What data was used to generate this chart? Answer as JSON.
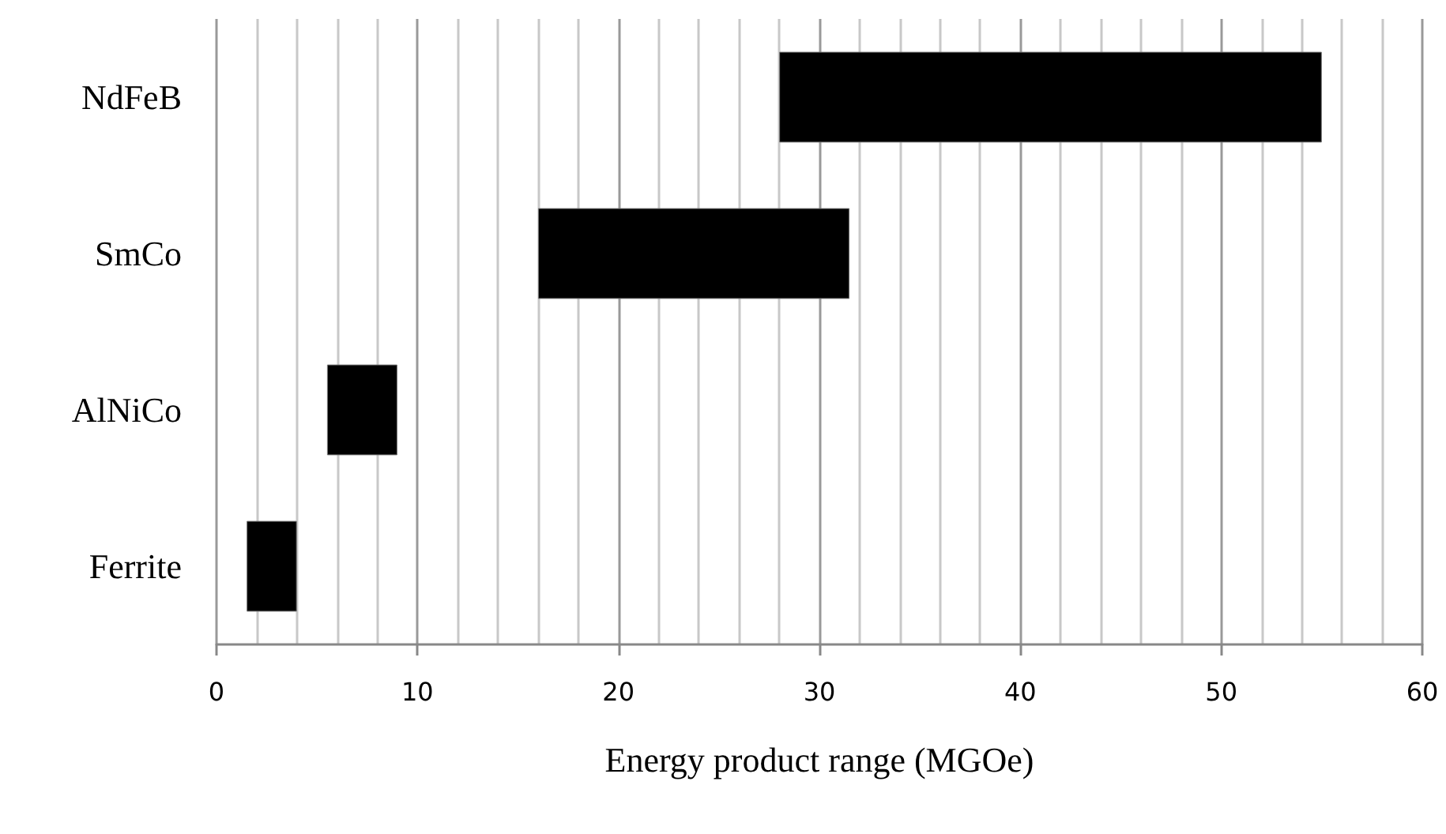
{
  "chart_data": {
    "type": "bar",
    "orientation": "horizontal",
    "xlabel": "Energy product range (MGOe)",
    "categories": [
      "NdFeB",
      "SmCo",
      "AlNiCo",
      "Ferrite"
    ],
    "base": [
      28,
      16,
      5.5,
      1.5
    ],
    "values": [
      27,
      15.5,
      3.5,
      2.5
    ],
    "color": "#000000",
    "xlim": [
      0,
      60
    ],
    "xticks": [
      0,
      10,
      20,
      30,
      40,
      50,
      60
    ],
    "grid": "x"
  }
}
